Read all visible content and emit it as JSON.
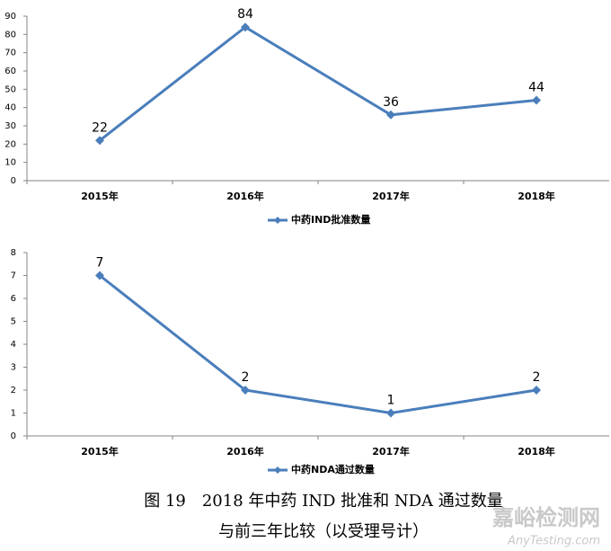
{
  "chart_data": [
    {
      "type": "line",
      "categories": [
        "2015年",
        "2016年",
        "2017年",
        "2018年"
      ],
      "series": [
        {
          "name": "中药IND批准数量",
          "color": "#4a7ebb",
          "values": [
            22,
            84,
            36,
            44
          ]
        }
      ],
      "ylim": [
        0,
        90
      ],
      "yticks": [
        0,
        10,
        20,
        30,
        40,
        50,
        60,
        70,
        80,
        90
      ],
      "grid": false,
      "legend": "bottom"
    },
    {
      "type": "line",
      "categories": [
        "2015年",
        "2016年",
        "2017年",
        "2018年"
      ],
      "series": [
        {
          "name": "中药NDA通过数量",
          "color": "#4a7ebb",
          "values": [
            7,
            2,
            1,
            2
          ]
        }
      ],
      "ylim": [
        0,
        8
      ],
      "yticks": [
        0,
        1,
        2,
        3,
        4,
        5,
        6,
        7,
        8
      ],
      "grid": false,
      "legend": "bottom"
    }
  ],
  "caption": [
    "图 19　2018 年中药 IND 批准和 NDA 通过数量",
    "与前三年比较（以受理号计）"
  ],
  "watermark": [
    "嘉峪检测网",
    "AnyTesting.com"
  ]
}
